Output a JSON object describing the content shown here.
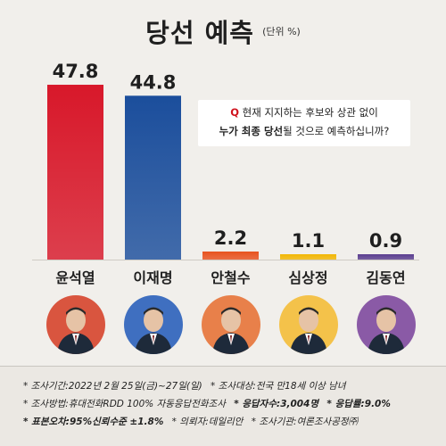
{
  "header": {
    "title": "당선 예측",
    "unit": "(단위 %)"
  },
  "question": {
    "prefix": "Q",
    "line1": "현재 지지하는 후보와 상관 없이",
    "line2_bold": "누가 최종 당선",
    "line2_rest": "될 것으로 예측하십니까?"
  },
  "chart_data": {
    "type": "bar",
    "title": "당선 예측",
    "ylabel": "",
    "unit": "%",
    "categories": [
      "윤석열",
      "이재명",
      "안철수",
      "심상정",
      "김동연"
    ],
    "values": [
      47.8,
      44.8,
      2.2,
      1.1,
      0.9
    ],
    "value_labels": [
      "47.8",
      "44.8",
      "2.2",
      "1.1",
      "0.9"
    ],
    "colors": [
      "#d8182a",
      "#1b4e9c",
      "#e8531f",
      "#f2b705",
      "#5b3f90"
    ],
    "avatar_colors": [
      "#d9553f",
      "#3f6fc0",
      "#e8804a",
      "#f4c24a",
      "#8a5aa6"
    ],
    "ylim": [
      0,
      50
    ],
    "grid": false,
    "legend": "none"
  },
  "footer": {
    "line1": [
      "조사기간:2022년 2월 25일(금)~27일(일)",
      "조사대상:전국 만18세 이상 남녀"
    ],
    "line2": [
      "조사방법:휴대전화RDD 100% 자동응답전화조사",
      "응답자수:3,004명",
      "응답률:9.0%"
    ],
    "line3": [
      "표본오차:95%신뢰수준 ±1.8%",
      "의뢰자:데일리안",
      "조사기관:여론조사공정㈜"
    ]
  }
}
